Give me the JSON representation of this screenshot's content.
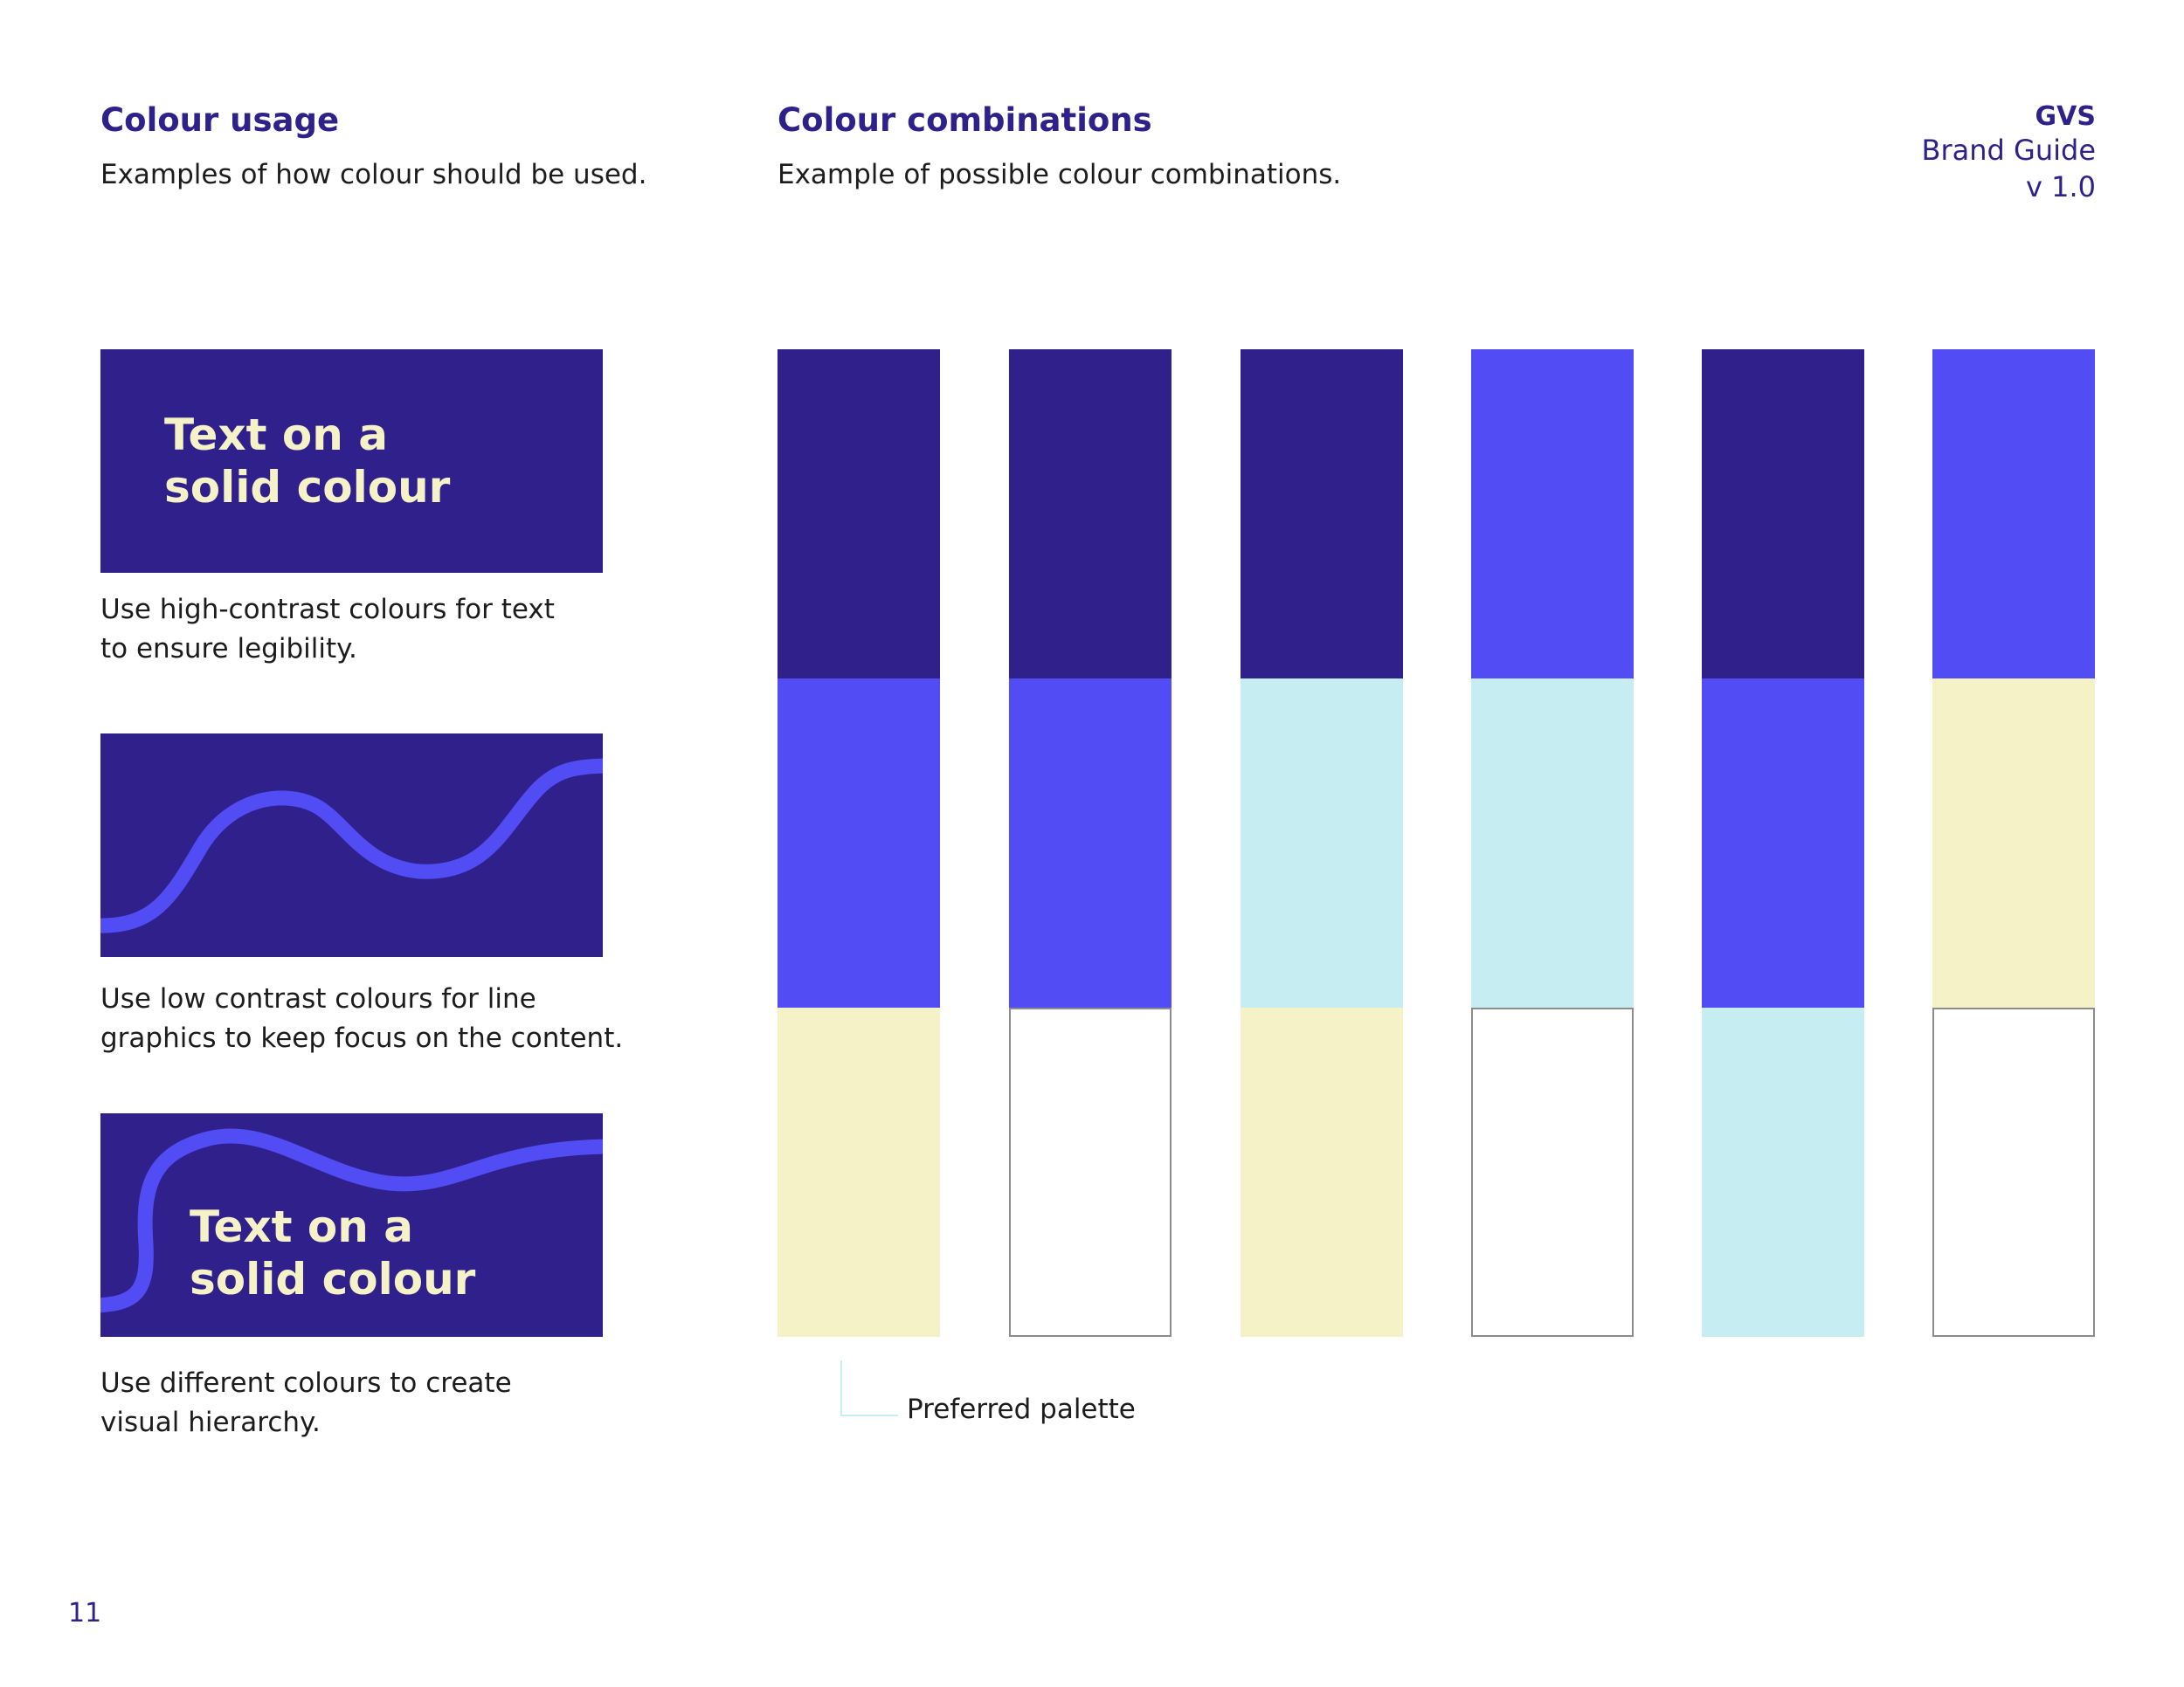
{
  "left": {
    "title": "Colour usage",
    "subtitle": "Examples of how colour should be used.",
    "examples": [
      {
        "panel_text": [
          "Text on a",
          "solid colour"
        ],
        "caption": [
          "Use high-contrast colours for text",
          "to ensure legibility."
        ]
      },
      {
        "panel_text": [],
        "caption": [
          "Use low contrast colours for line",
          "graphics to keep focus on the content."
        ]
      },
      {
        "panel_text": [
          "Text on a",
          "solid colour"
        ],
        "caption": [
          "Use different colours to create",
          "visual hierarchy."
        ]
      }
    ]
  },
  "middle": {
    "title": "Colour combinations",
    "subtitle": "Example of possible colour combinations."
  },
  "brand": {
    "name": "GVS",
    "line1": "Brand Guide",
    "line2": "v 1.0"
  },
  "palette": {
    "colors": {
      "dark": "#30208b",
      "bright": "#514cf4",
      "cyan": "#c5edf2",
      "cream": "#f6f2c8",
      "white": "#ffffff"
    },
    "columns": [
      [
        "dark",
        "bright",
        "cream"
      ],
      [
        "dark",
        "bright",
        "white"
      ],
      [
        "dark",
        "cyan",
        "cream"
      ],
      [
        "bright",
        "cyan",
        "white"
      ],
      [
        "dark",
        "bright",
        "cyan"
      ],
      [
        "bright",
        "cream",
        "white"
      ]
    ],
    "legend": "Preferred palette"
  },
  "page_number": "11"
}
